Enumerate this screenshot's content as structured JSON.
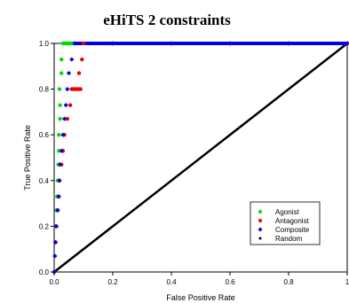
{
  "chart_data": {
    "type": "scatter",
    "title": "eHiTS 2 constraints",
    "xlabel": "False Positive Rate",
    "ylabel": "True Positive Rate",
    "xlim": [
      0,
      1
    ],
    "ylim": [
      0,
      1
    ],
    "x_ticks": [
      "0.0",
      "0.2",
      "0.4",
      "0.6",
      "0.8",
      "1"
    ],
    "y_ticks": [
      "0.0",
      "0.2",
      "0.4",
      "0.6",
      "0.8",
      "1.0"
    ],
    "grid": false,
    "legend_position": "lower-right",
    "series": [
      {
        "name": "Agonist",
        "color": "#00dd00",
        "points": [
          [
            0.0,
            0.0
          ],
          [
            0.003,
            0.07
          ],
          [
            0.004,
            0.13
          ],
          [
            0.005,
            0.2
          ],
          [
            0.008,
            0.27
          ],
          [
            0.01,
            0.33
          ],
          [
            0.012,
            0.4
          ],
          [
            0.014,
            0.47
          ],
          [
            0.016,
            0.53
          ],
          [
            0.016,
            0.6
          ],
          [
            0.02,
            0.67
          ],
          [
            0.02,
            0.73
          ],
          [
            0.018,
            0.8
          ],
          [
            0.025,
            0.87
          ],
          [
            0.025,
            0.93
          ],
          [
            0.03,
            1.0
          ],
          [
            0.035,
            1.0
          ],
          [
            0.04,
            1.0
          ],
          [
            0.045,
            1.0
          ],
          [
            0.05,
            1.0
          ],
          [
            0.055,
            1.0
          ],
          [
            0.06,
            1.0
          ],
          [
            0.065,
            1.0
          ]
        ]
      },
      {
        "name": "Antagonist",
        "color": "#ee0000",
        "points": [
          [
            0.0,
            0.0
          ],
          [
            0.005,
            0.13
          ],
          [
            0.008,
            0.2
          ],
          [
            0.012,
            0.27
          ],
          [
            0.015,
            0.33
          ],
          [
            0.018,
            0.4
          ],
          [
            0.025,
            0.47
          ],
          [
            0.03,
            0.53
          ],
          [
            0.035,
            0.6
          ],
          [
            0.045,
            0.67
          ],
          [
            0.055,
            0.73
          ],
          [
            0.06,
            0.8
          ],
          [
            0.065,
            0.8
          ],
          [
            0.07,
            0.8
          ],
          [
            0.075,
            0.8
          ],
          [
            0.08,
            0.8
          ],
          [
            0.085,
            0.8
          ],
          [
            0.09,
            0.8
          ],
          [
            0.085,
            0.87
          ],
          [
            0.095,
            0.93
          ],
          [
            0.1,
            1.0
          ],
          [
            0.2,
            1.0
          ],
          [
            0.4,
            1.0
          ],
          [
            0.6,
            1.0
          ],
          [
            0.8,
            1.0
          ],
          [
            1.0,
            1.0
          ]
        ]
      },
      {
        "name": "Composite",
        "color": "#0000ee",
        "points": [
          [
            0.0,
            0.0
          ],
          [
            0.002,
            0.07
          ],
          [
            0.004,
            0.13
          ],
          [
            0.006,
            0.2
          ],
          [
            0.012,
            0.27
          ],
          [
            0.016,
            0.33
          ],
          [
            0.018,
            0.4
          ],
          [
            0.02,
            0.47
          ],
          [
            0.025,
            0.53
          ],
          [
            0.03,
            0.6
          ],
          [
            0.035,
            0.67
          ],
          [
            0.04,
            0.73
          ],
          [
            0.045,
            0.8
          ],
          [
            0.05,
            0.87
          ],
          [
            0.06,
            0.93
          ],
          [
            0.07,
            1.0
          ],
          [
            0.2,
            1.0
          ],
          [
            0.4,
            1.0
          ],
          [
            0.6,
            1.0
          ],
          [
            0.8,
            1.0
          ],
          [
            1.0,
            1.0
          ]
        ]
      },
      {
        "name": "Random",
        "color": "#000000",
        "points": [
          [
            0,
            0
          ],
          [
            1,
            1
          ]
        ]
      }
    ]
  }
}
